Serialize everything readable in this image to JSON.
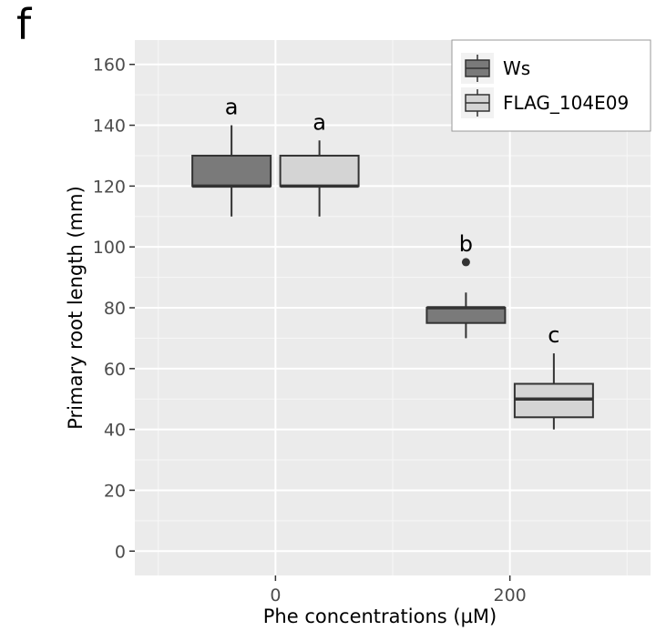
{
  "panel_label": "f",
  "chart_data": {
    "type": "box",
    "xlabel": "Phe concentrations (µM)",
    "ylabel": "Primary root length (mm)",
    "ylim": [
      -8,
      168
    ],
    "xlim": [
      -120,
      320
    ],
    "yticks": [
      0,
      20,
      40,
      60,
      80,
      100,
      120,
      140,
      160
    ],
    "xticks": [
      0,
      200
    ],
    "grid": true,
    "legend_position": "top-right",
    "series": [
      {
        "name": "Ws",
        "color": "#7a7a7a",
        "boxes": [
          {
            "x": 0,
            "min": 110,
            "q1": 120,
            "median": 120,
            "q3": 130,
            "max": 140,
            "outliers": [],
            "label": "a"
          },
          {
            "x": 200,
            "min": 70,
            "q1": 75,
            "median": 80,
            "q3": 80,
            "max": 85,
            "outliers": [
              95
            ],
            "label": "b"
          }
        ]
      },
      {
        "name": "FLAG_104E09",
        "color": "#d4d4d4",
        "boxes": [
          {
            "x": 0,
            "min": 110,
            "q1": 120,
            "median": 120,
            "q3": 130,
            "max": 135,
            "outliers": [],
            "label": "a"
          },
          {
            "x": 200,
            "min": 40,
            "q1": 44,
            "median": 50,
            "q3": 55,
            "max": 65,
            "outliers": [],
            "label": "c"
          }
        ]
      }
    ]
  }
}
